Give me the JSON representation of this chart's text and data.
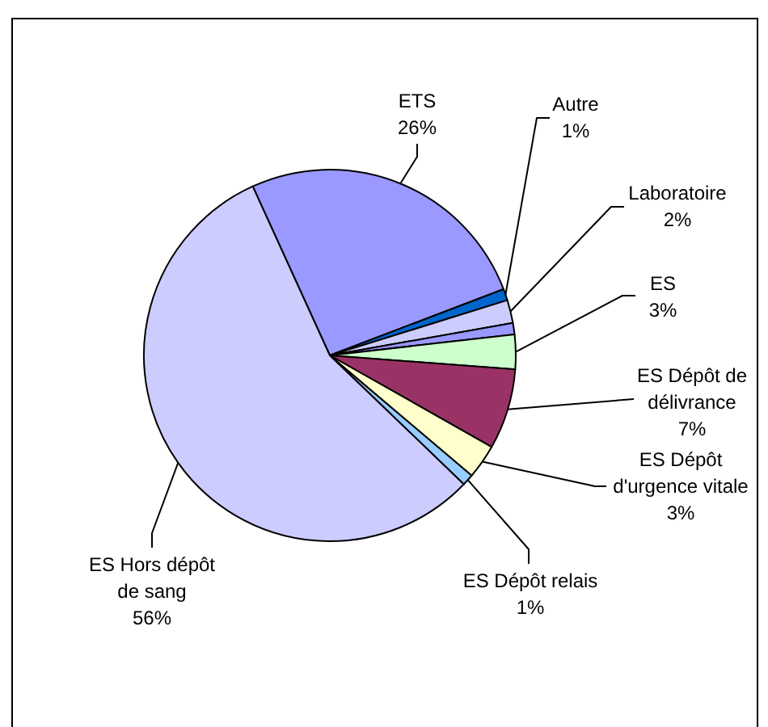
{
  "chart_data": {
    "type": "pie",
    "categories": [
      "ETS",
      "Autre",
      "Laboratoire",
      null,
      "ES",
      "ES Dépôt de délivrance",
      "ES Dépôt d'urgence vitale",
      "ES Dépôt relais",
      "ES Hors dépôt de sang"
    ],
    "values": [
      26,
      1,
      2,
      1,
      3,
      7,
      3,
      1,
      56
    ],
    "colors": [
      "#9999ff",
      "#0066cc",
      "#ccccff",
      "#9999ff",
      "#ccffcc",
      "#993366",
      "#ffffcc",
      "#99ccff",
      "#ccccff"
    ],
    "value_labels": [
      "26%",
      "1%",
      "2%",
      null,
      "3%",
      "7%",
      "3%",
      "1%",
      "56%"
    ]
  }
}
